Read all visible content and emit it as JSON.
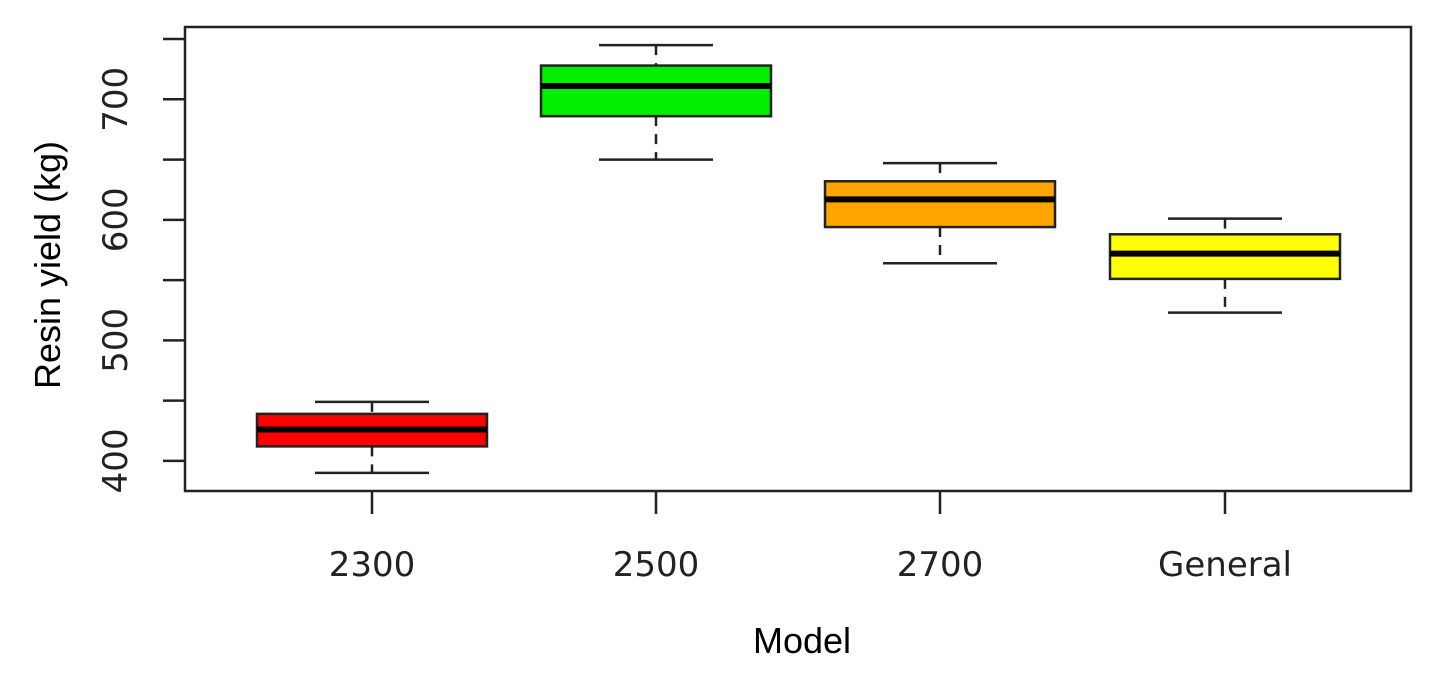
{
  "chart_data": {
    "type": "boxplot",
    "xlabel": "Model",
    "ylabel": "Resin yield (kg)",
    "ylim": [
      375,
      760
    ],
    "yticks": [
      400,
      450,
      500,
      550,
      600,
      650,
      700,
      750
    ],
    "ytick_labels": [
      "400",
      "500",
      "600",
      "700"
    ],
    "ytick_label_values": [
      400,
      500,
      600,
      700
    ],
    "grid": false,
    "categories": [
      "2300",
      "2500",
      "2700",
      "General"
    ],
    "boxes": [
      {
        "category": "2300",
        "min": 390,
        "q1": 412,
        "median": 426,
        "q3": 439,
        "max": 449,
        "color": "#ff0000"
      },
      {
        "category": "2500",
        "min": 650,
        "q1": 686,
        "median": 711,
        "q3": 728,
        "max": 745,
        "color": "#00ee00"
      },
      {
        "category": "2700",
        "min": 564,
        "q1": 594,
        "median": 617,
        "q3": 632,
        "max": 647,
        "color": "#ffa500"
      },
      {
        "category": "General",
        "min": 523,
        "q1": 551,
        "median": 572,
        "q3": 588,
        "max": 601,
        "color": "#ffff00"
      }
    ]
  }
}
